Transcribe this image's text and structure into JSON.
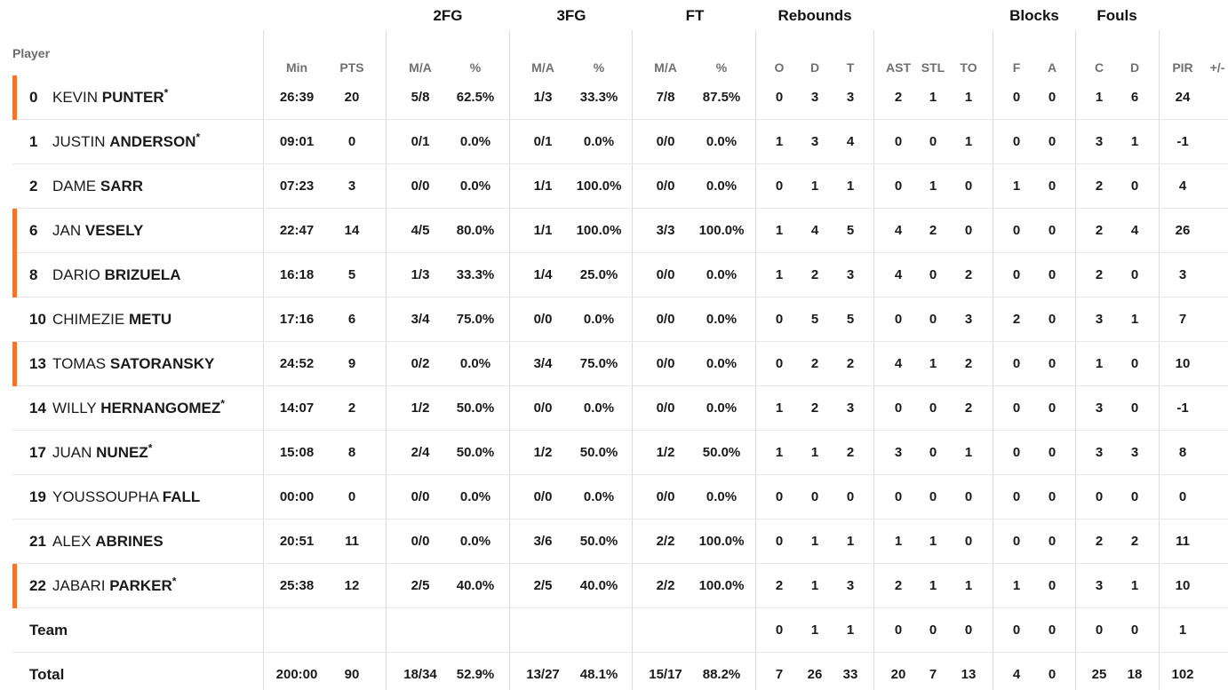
{
  "header": {
    "groups": [
      "2FG",
      "3FG",
      "FT",
      "Rebounds",
      "Blocks",
      "Fouls"
    ],
    "player_label": "Player",
    "columns": [
      "Min",
      "PTS",
      "M/A",
      "%",
      "M/A",
      "%",
      "M/A",
      "%",
      "O",
      "D",
      "T",
      "AST",
      "STL",
      "TO",
      "F",
      "A",
      "C",
      "D",
      "PIR",
      "+/-"
    ]
  },
  "rows": [
    {
      "num": "0",
      "first": "KEVIN",
      "last": "PUNTER",
      "star": "*",
      "starter": true,
      "stats": [
        "26:39",
        "20",
        "5/8",
        "62.5%",
        "1/3",
        "33.3%",
        "7/8",
        "87.5%",
        "0",
        "3",
        "3",
        "2",
        "1",
        "1",
        "0",
        "0",
        "1",
        "6",
        "24",
        ""
      ]
    },
    {
      "num": "1",
      "first": "JUSTIN",
      "last": "ANDERSON",
      "star": "*",
      "starter": false,
      "stats": [
        "09:01",
        "0",
        "0/1",
        "0.0%",
        "0/1",
        "0.0%",
        "0/0",
        "0.0%",
        "1",
        "3",
        "4",
        "0",
        "0",
        "1",
        "0",
        "0",
        "3",
        "1",
        "-1",
        ""
      ]
    },
    {
      "num": "2",
      "first": "DAME",
      "last": "SARR",
      "star": "",
      "starter": false,
      "stats": [
        "07:23",
        "3",
        "0/0",
        "0.0%",
        "1/1",
        "100.0%",
        "0/0",
        "0.0%",
        "0",
        "1",
        "1",
        "0",
        "1",
        "0",
        "1",
        "0",
        "2",
        "0",
        "4",
        ""
      ]
    },
    {
      "num": "6",
      "first": "JAN",
      "last": "VESELY",
      "star": "",
      "starter": true,
      "stats": [
        "22:47",
        "14",
        "4/5",
        "80.0%",
        "1/1",
        "100.0%",
        "3/3",
        "100.0%",
        "1",
        "4",
        "5",
        "4",
        "2",
        "0",
        "0",
        "0",
        "2",
        "4",
        "26",
        ""
      ]
    },
    {
      "num": "8",
      "first": "DARIO",
      "last": "BRIZUELA",
      "star": "",
      "starter": true,
      "stats": [
        "16:18",
        "5",
        "1/3",
        "33.3%",
        "1/4",
        "25.0%",
        "0/0",
        "0.0%",
        "1",
        "2",
        "3",
        "4",
        "0",
        "2",
        "0",
        "0",
        "2",
        "0",
        "3",
        ""
      ]
    },
    {
      "num": "10",
      "first": "CHIMEZIE",
      "last": "METU",
      "star": "",
      "starter": false,
      "stats": [
        "17:16",
        "6",
        "3/4",
        "75.0%",
        "0/0",
        "0.0%",
        "0/0",
        "0.0%",
        "0",
        "5",
        "5",
        "0",
        "0",
        "3",
        "2",
        "0",
        "3",
        "1",
        "7",
        ""
      ]
    },
    {
      "num": "13",
      "first": "TOMAS",
      "last": "SATORANSKY",
      "star": "",
      "starter": true,
      "stats": [
        "24:52",
        "9",
        "0/2",
        "0.0%",
        "3/4",
        "75.0%",
        "0/0",
        "0.0%",
        "0",
        "2",
        "2",
        "4",
        "1",
        "2",
        "0",
        "0",
        "1",
        "0",
        "10",
        ""
      ]
    },
    {
      "num": "14",
      "first": "WILLY",
      "last": "HERNANGOMEZ",
      "star": "*",
      "starter": false,
      "stats": [
        "14:07",
        "2",
        "1/2",
        "50.0%",
        "0/0",
        "0.0%",
        "0/0",
        "0.0%",
        "1",
        "2",
        "3",
        "0",
        "0",
        "2",
        "0",
        "0",
        "3",
        "0",
        "-1",
        ""
      ]
    },
    {
      "num": "17",
      "first": "JUAN",
      "last": "NUNEZ",
      "star": "*",
      "starter": false,
      "stats": [
        "15:08",
        "8",
        "2/4",
        "50.0%",
        "1/2",
        "50.0%",
        "1/2",
        "50.0%",
        "1",
        "1",
        "2",
        "3",
        "0",
        "1",
        "0",
        "0",
        "3",
        "3",
        "8",
        ""
      ]
    },
    {
      "num": "19",
      "first": "YOUSSOUPHA",
      "last": "FALL",
      "star": "",
      "starter": false,
      "stats": [
        "00:00",
        "0",
        "0/0",
        "0.0%",
        "0/0",
        "0.0%",
        "0/0",
        "0.0%",
        "0",
        "0",
        "0",
        "0",
        "0",
        "0",
        "0",
        "0",
        "0",
        "0",
        "0",
        ""
      ]
    },
    {
      "num": "21",
      "first": "ALEX",
      "last": "ABRINES",
      "star": "",
      "starter": false,
      "stats": [
        "20:51",
        "11",
        "0/0",
        "0.0%",
        "3/6",
        "50.0%",
        "2/2",
        "100.0%",
        "0",
        "1",
        "1",
        "1",
        "1",
        "0",
        "0",
        "0",
        "2",
        "2",
        "11",
        ""
      ]
    },
    {
      "num": "22",
      "first": "JABARI",
      "last": "PARKER",
      "star": "*",
      "starter": true,
      "stats": [
        "25:38",
        "12",
        "2/5",
        "40.0%",
        "2/5",
        "40.0%",
        "2/2",
        "100.0%",
        "2",
        "1",
        "3",
        "2",
        "1",
        "1",
        "1",
        "0",
        "3",
        "1",
        "10",
        ""
      ]
    }
  ],
  "team": {
    "label": "Team",
    "stats": [
      "",
      "",
      "",
      "",
      "",
      "",
      "",
      "",
      "0",
      "1",
      "1",
      "0",
      "0",
      "0",
      "0",
      "0",
      "0",
      "0",
      "1",
      ""
    ]
  },
  "total": {
    "label": "Total",
    "stats": [
      "200:00",
      "90",
      "18/34",
      "52.9%",
      "13/27",
      "48.1%",
      "15/17",
      "88.2%",
      "7",
      "26",
      "33",
      "20",
      "7",
      "13",
      "4",
      "0",
      "25",
      "18",
      "102",
      ""
    ]
  },
  "colors": {
    "starter_accent": "#f5732a",
    "divider": "#dcdcdc",
    "row_border": "#e8e8e8",
    "header_gray": "#707070"
  }
}
